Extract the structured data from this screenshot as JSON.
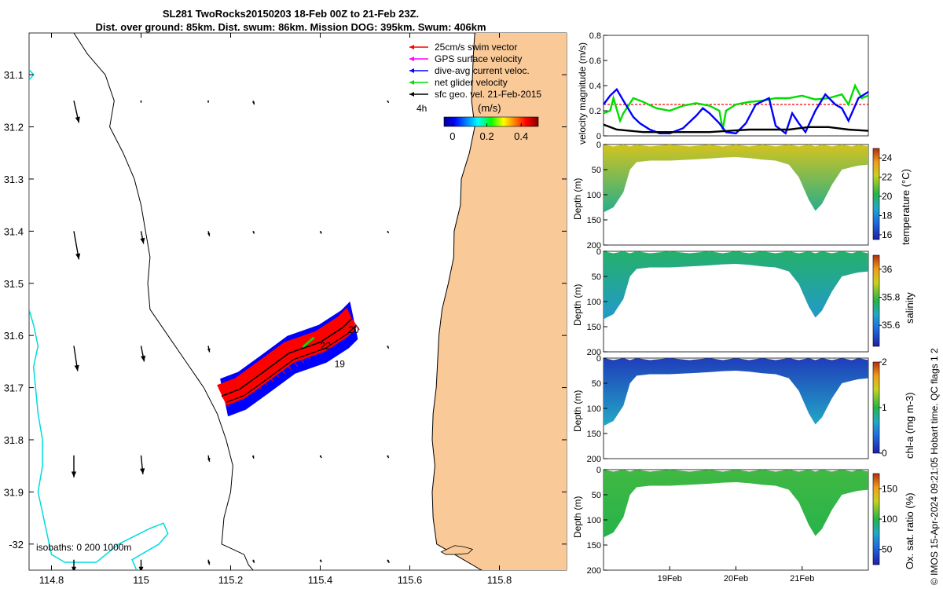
{
  "title": {
    "line1": "SL281 TwoRocks20150203 18-Feb 00Z to 21-Feb 23Z.",
    "line2": "Dist. over ground: 85km. Dist. swum: 86km. Mission DOG: 395km. Swum: 406km"
  },
  "colors": {
    "land": "#f9c997",
    "isobath": "#00dcdc",
    "swim": "#ff0000",
    "gps": "#ff00ff",
    "dac": "#0000ff",
    "net": "#00dd00",
    "geo": "#000000"
  },
  "chart_data": [
    {
      "type": "map",
      "xlim": [
        114.75,
        115.95
      ],
      "ylim": [
        -32.05,
        -31.02
      ],
      "x_ticks": [
        114.8,
        115,
        115.2,
        115.4,
        115.6,
        115.8
      ],
      "x_tick_labels": [
        "114.8",
        "115",
        "115.2",
        "115.4",
        "115.6",
        "115.8"
      ],
      "y_ticks": [
        -31.1,
        -31.2,
        -31.3,
        -31.4,
        -31.5,
        -31.6,
        -31.7,
        -31.8,
        -31.9,
        -32.0
      ],
      "y_tick_labels": [
        "31.1",
        "31.2",
        "31.3",
        "31.4",
        "31.5",
        "31.6",
        "31.7",
        "31.8",
        "31.9",
        "-32"
      ],
      "legend": [
        {
          "label": "25cm/s swim vector",
          "color": "#ff0000"
        },
        {
          "label": "GPS surface velocity",
          "color": "#ff00ff"
        },
        {
          "label": "dive-avg current veloc.",
          "color": "#0000ff"
        },
        {
          "label": "net glider velocity",
          "color": "#00dd00"
        },
        {
          "label": "sfc geo. vel. 21-Feb-2015",
          "color": "#000000"
        }
      ],
      "legend_placement": "top-right",
      "time_step_label": "4h",
      "colorbar": {
        "title": "(m/s)",
        "ticks": [
          0,
          0.2,
          0.4
        ],
        "tick_labels": [
          "0",
          "0.2",
          "0.4"
        ],
        "range": [
          -0.05,
          0.5
        ]
      },
      "isobath_label": "isobaths: 0   200  1000m",
      "track_labels": [
        "22",
        "19",
        "20"
      ],
      "track": {
        "lon": [
          115.18,
          115.22,
          115.27,
          115.33,
          115.4,
          115.45,
          115.47
        ],
        "lat": [
          -31.716,
          -31.703,
          -31.672,
          -31.634,
          -31.613,
          -31.585,
          -31.568
        ]
      },
      "coastline": {
        "lon": [
          115.745,
          115.742,
          115.74,
          115.738,
          115.745,
          115.733,
          115.715,
          115.713,
          115.699,
          115.698,
          115.686,
          115.672,
          115.665,
          115.662,
          115.659,
          115.652,
          115.65,
          115.656,
          115.65,
          115.652,
          115.66,
          115.7,
          115.76
        ],
        "lat": [
          -31.02,
          -31.06,
          -31.1,
          -31.15,
          -31.2,
          -31.25,
          -31.3,
          -31.35,
          -31.4,
          -31.45,
          -31.5,
          -31.55,
          -31.6,
          -31.65,
          -31.7,
          -31.75,
          -31.8,
          -31.85,
          -31.9,
          -31.95,
          -32.0,
          -32.02,
          -32.05
        ]
      },
      "island": {
        "lon": [
          115.67,
          115.7,
          115.72,
          115.74,
          115.73,
          115.7,
          115.68
        ],
        "lat": [
          -32.015,
          -32.003,
          -32.005,
          -32.01,
          -32.018,
          -32.02,
          -32.02
        ]
      },
      "isobath_200": {
        "lon": [
          114.85,
          114.88,
          114.92,
          114.94,
          114.93,
          114.96,
          114.985,
          115.0,
          115.01,
          115.02,
          115.015,
          115.02,
          115.06,
          115.1,
          115.14,
          115.17,
          115.19,
          115.205,
          115.2,
          115.185,
          115.18,
          115.23,
          115.24,
          115.25
        ],
        "lat": [
          -31.02,
          -31.06,
          -31.1,
          -31.15,
          -31.2,
          -31.25,
          -31.3,
          -31.35,
          -31.4,
          -31.45,
          -31.5,
          -31.55,
          -31.6,
          -31.65,
          -31.7,
          -31.75,
          -31.8,
          -31.85,
          -31.9,
          -31.95,
          -32.0,
          -32.02,
          -32.04,
          -32.05
        ]
      },
      "isobath_1000": {
        "lon": [
          114.75,
          114.76,
          114.75,
          114.75,
          114.76,
          114.77,
          114.76,
          114.77,
          114.78,
          114.78,
          114.77,
          114.79,
          114.8,
          114.83,
          114.9,
          114.95,
          115.02,
          115.05,
          115.06,
          115.04,
          115.0,
          114.98,
          114.99
        ],
        "lat": [
          -31.09,
          -31.1,
          -31.11,
          -31.55,
          -31.58,
          -31.62,
          -31.66,
          -31.75,
          -31.8,
          -31.85,
          -31.9,
          -31.98,
          -32.02,
          -32.035,
          -32.035,
          -32.0,
          -31.97,
          -31.96,
          -31.98,
          -32.0,
          -32.02,
          -32.03,
          -32.05
        ]
      },
      "geo_vectors": [
        {
          "lon": 114.85,
          "lat": -31.15,
          "u": 0.008,
          "v": -0.035
        },
        {
          "lon": 115.0,
          "lat": -31.15,
          "u": 0.0,
          "v": -0.003
        },
        {
          "lon": 115.15,
          "lat": -31.15,
          "u": 0.0,
          "v": -0.003
        },
        {
          "lon": 115.25,
          "lat": -31.15,
          "u": 0.002,
          "v": -0.006
        },
        {
          "lon": 115.55,
          "lat": -31.15,
          "u": 0.002,
          "v": -0.003
        },
        {
          "lon": 114.85,
          "lat": -31.4,
          "u": 0.008,
          "v": -0.045
        },
        {
          "lon": 115.0,
          "lat": -31.4,
          "u": 0.004,
          "v": -0.02
        },
        {
          "lon": 115.15,
          "lat": -31.4,
          "u": 0.002,
          "v": -0.008
        },
        {
          "lon": 115.25,
          "lat": -31.4,
          "u": 0.002,
          "v": -0.004
        },
        {
          "lon": 115.4,
          "lat": -31.4,
          "u": 0.002,
          "v": -0.004
        },
        {
          "lon": 115.55,
          "lat": -31.4,
          "u": 0.002,
          "v": -0.003
        },
        {
          "lon": 114.85,
          "lat": -31.62,
          "u": 0.006,
          "v": -0.04
        },
        {
          "lon": 115.0,
          "lat": -31.62,
          "u": 0.005,
          "v": -0.025
        },
        {
          "lon": 115.15,
          "lat": -31.62,
          "u": 0.002,
          "v": -0.01
        },
        {
          "lon": 115.4,
          "lat": -31.62,
          "u": 0.002,
          "v": -0.003
        },
        {
          "lon": 115.55,
          "lat": -31.62,
          "u": 0.002,
          "v": -0.004
        },
        {
          "lon": 114.85,
          "lat": -31.83,
          "u": 0.0,
          "v": -0.035
        },
        {
          "lon": 115.0,
          "lat": -31.83,
          "u": 0.003,
          "v": -0.03
        },
        {
          "lon": 115.15,
          "lat": -31.83,
          "u": 0.002,
          "v": -0.01
        },
        {
          "lon": 115.25,
          "lat": -31.83,
          "u": 0.001,
          "v": -0.005
        },
        {
          "lon": 115.4,
          "lat": -31.83,
          "u": 0.002,
          "v": -0.004
        },
        {
          "lon": 115.55,
          "lat": -31.83,
          "u": 0.002,
          "v": -0.004
        },
        {
          "lon": 114.85,
          "lat": -32.03,
          "u": 0.0,
          "v": -0.02
        },
        {
          "lon": 115.0,
          "lat": -32.03,
          "u": 0.0,
          "v": -0.02
        },
        {
          "lon": 115.15,
          "lat": -32.03,
          "u": 0.002,
          "v": -0.008
        },
        {
          "lon": 115.25,
          "lat": -32.03,
          "u": 0.002,
          "v": -0.005
        },
        {
          "lon": 115.4,
          "lat": -32.03,
          "u": 0.002,
          "v": -0.004
        },
        {
          "lon": 115.55,
          "lat": -32.03,
          "u": 0.003,
          "v": -0.005
        }
      ]
    },
    {
      "type": "line",
      "ylabel": "velocity magnitude (m/s)",
      "xlim_days": [
        18.0,
        22.0
      ],
      "ylim": [
        0,
        0.8
      ],
      "y_ticks": [
        0,
        0.2,
        0.4,
        0.6,
        0.8
      ],
      "y_tick_labels": [
        "0",
        "0.2",
        "0.4",
        "0.6",
        "0.8"
      ],
      "grid": false,
      "series": [
        {
          "name": "swim speed",
          "color": "#ff0000",
          "style": "dashed",
          "x": [
            18.0,
            18.5,
            19.0,
            19.5,
            20.0,
            20.5,
            21.0,
            21.5,
            22.0
          ],
          "y": [
            0.25,
            0.25,
            0.25,
            0.25,
            0.25,
            0.25,
            0.25,
            0.25,
            0.25
          ]
        },
        {
          "name": "net glider velocity",
          "color": "#00dd00",
          "x": [
            18.0,
            18.1,
            18.15,
            18.25,
            18.3,
            18.45,
            18.6,
            18.8,
            19.0,
            19.2,
            19.4,
            19.6,
            19.75,
            19.8,
            19.85,
            20.0,
            20.2,
            20.4,
            20.6,
            20.8,
            21.0,
            21.2,
            21.4,
            21.6,
            21.7,
            21.8,
            21.9,
            22.0
          ],
          "y": [
            0.18,
            0.2,
            0.3,
            0.12,
            0.18,
            0.3,
            0.27,
            0.22,
            0.2,
            0.24,
            0.26,
            0.24,
            0.2,
            0.05,
            0.2,
            0.25,
            0.27,
            0.28,
            0.3,
            0.3,
            0.32,
            0.29,
            0.3,
            0.33,
            0.25,
            0.4,
            0.3,
            0.32
          ]
        },
        {
          "name": "dive-avg current veloc.",
          "color": "#0000ff",
          "x": [
            18.0,
            18.1,
            18.2,
            18.3,
            18.45,
            18.55,
            18.7,
            18.85,
            19.0,
            19.2,
            19.4,
            19.5,
            19.6,
            19.75,
            19.85,
            20.0,
            20.15,
            20.3,
            20.5,
            20.6,
            20.75,
            20.85,
            20.95,
            21.05,
            21.2,
            21.35,
            21.5,
            21.6,
            21.7,
            21.85,
            22.0
          ],
          "y": [
            0.25,
            0.32,
            0.37,
            0.28,
            0.15,
            0.1,
            0.05,
            0.02,
            0.02,
            0.06,
            0.16,
            0.22,
            0.18,
            0.1,
            0.03,
            0.02,
            0.1,
            0.25,
            0.3,
            0.08,
            0.02,
            0.18,
            0.1,
            0.03,
            0.2,
            0.33,
            0.25,
            0.22,
            0.12,
            0.3,
            0.35
          ]
        },
        {
          "name": "sfc geo. vel.",
          "color": "#000000",
          "x": [
            18.0,
            18.2,
            18.4,
            18.6,
            18.8,
            19.0,
            19.3,
            19.6,
            19.9,
            20.2,
            20.5,
            20.8,
            21.1,
            21.4,
            21.7,
            22.0
          ],
          "y": [
            0.09,
            0.05,
            0.04,
            0.03,
            0.03,
            0.03,
            0.03,
            0.03,
            0.04,
            0.05,
            0.05,
            0.05,
            0.07,
            0.07,
            0.05,
            0.04
          ]
        }
      ]
    },
    {
      "type": "heatmap",
      "variable": "temperature",
      "ylabel": "Depth (m)",
      "colorbar_label": "temperature (°C)",
      "clim": [
        15.5,
        25
      ],
      "colorbar_ticks": [
        16,
        18,
        20,
        22,
        24
      ],
      "colorbar_tick_labels": [
        "16",
        "18",
        "20",
        "22",
        "24"
      ],
      "ylim": [
        0,
        200
      ],
      "y_ticks": [
        0,
        50,
        100,
        150,
        200
      ],
      "y_tick_labels": [
        "0",
        "50",
        "100",
        "150",
        "200"
      ],
      "surface_value": 22.5,
      "deep_value": 19.5
    },
    {
      "type": "heatmap",
      "variable": "salinity",
      "ylabel": "Depth (m)",
      "colorbar_label": "salinity",
      "clim": [
        35.45,
        36.1
      ],
      "colorbar_ticks": [
        35.6,
        35.8,
        36
      ],
      "colorbar_tick_labels": [
        "35.6",
        "35.8",
        "36"
      ],
      "ylim": [
        0,
        200
      ],
      "y_ticks": [
        0,
        50,
        100,
        150,
        200
      ],
      "y_tick_labels": [
        "0",
        "50",
        "100",
        "150",
        "200"
      ],
      "surface_value": 35.75,
      "deep_value": 35.65
    },
    {
      "type": "heatmap",
      "variable": "chl-a",
      "ylabel": "Depth (m)",
      "colorbar_label": "chl-a (mg m-3)",
      "clim": [
        0,
        2
      ],
      "colorbar_ticks": [
        0,
        1,
        2
      ],
      "colorbar_tick_labels": [
        "0",
        "1",
        "2"
      ],
      "ylim": [
        0,
        200
      ],
      "y_ticks": [
        0,
        50,
        100,
        150,
        200
      ],
      "y_tick_labels": [
        "0",
        "50",
        "100",
        "150",
        "200"
      ],
      "surface_value": 0.15,
      "deep_value": 0.7
    },
    {
      "type": "heatmap",
      "variable": "oxygen saturation",
      "ylabel": "Depth (m)",
      "colorbar_label": "Ox. sat. ratio (%)",
      "clim": [
        25,
        175
      ],
      "colorbar_ticks": [
        50,
        100,
        150
      ],
      "colorbar_tick_labels": [
        "50",
        "100",
        "150"
      ],
      "ylim": [
        0,
        200
      ],
      "y_ticks": [
        0,
        50,
        100,
        150,
        200
      ],
      "y_tick_labels": [
        "0",
        "50",
        "100",
        "150",
        "200"
      ],
      "surface_value": 105,
      "deep_value": 100
    }
  ],
  "profile_depth": {
    "x_days": [
      18.0,
      18.15,
      18.3,
      18.4,
      18.5,
      18.7,
      19.0,
      19.3,
      19.6,
      19.8,
      20.0,
      20.2,
      20.4,
      20.6,
      20.8,
      20.95,
      21.1,
      21.2,
      21.3,
      21.45,
      21.6,
      21.75,
      21.85,
      22.0
    ],
    "depth": [
      135,
      125,
      95,
      50,
      35,
      32,
      32,
      30,
      28,
      26,
      25,
      27,
      30,
      32,
      40,
      65,
      110,
      132,
      118,
      80,
      50,
      45,
      42,
      40
    ]
  },
  "time_axis": {
    "ticks_days": [
      19,
      20,
      21
    ],
    "tick_labels": [
      "19Feb",
      "20Feb",
      "21Feb"
    ]
  },
  "credit": "© IMOS 15-Apr-2024 09:21:05 Hobart time. QC flags 1  2"
}
